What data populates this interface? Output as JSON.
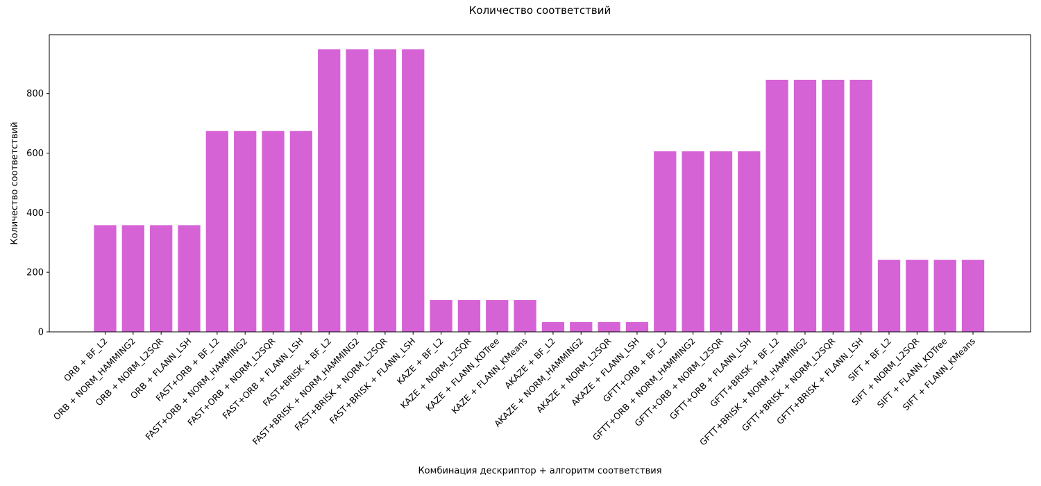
{
  "chart_data": {
    "type": "bar",
    "title": "Количество соответствий",
    "xlabel": "Комбинация дескриптор + алгоритм соответствия",
    "ylabel": "Количество соответствий",
    "ylim": [
      0,
      1000
    ],
    "yticks": [
      0,
      200,
      400,
      600,
      800
    ],
    "grid": false,
    "bar_color": "#d663d6",
    "categories": [
      "ORB + BF_L2",
      "ORB + NORM_HAMMING2",
      "ORB + NORM_L2SQR",
      "ORB + FLANN_LSH",
      "FAST+ORB + BF_L2",
      "FAST+ORB + NORM_HAMMING2",
      "FAST+ORB + NORM_L2SQR",
      "FAST+ORB + FLANN_LSH",
      "FAST+BRISK + BF_L2",
      "FAST+BRISK + NORM_HAMMING2",
      "FAST+BRISK + NORM_L2SQR",
      "FAST+BRISK + FLANN_LSH",
      "KAZE + BF_L2",
      "KAZE + NORM_L2SQR",
      "KAZE + FLANN_KDTree",
      "KAZE + FLANN_KMeans",
      "AKAZE + BF_L2",
      "AKAZE + NORM_HAMMING2",
      "AKAZE + NORM_L2SQR",
      "AKAZE + FLANN_LSH",
      "GFTT+ORB + BF_L2",
      "GFTT+ORB + NORM_HAMMING2",
      "GFTT+ORB + NORM_L2SQR",
      "GFTT+ORB + FLANN_LSH",
      "GFTT+BRISK + BF_L2",
      "GFTT+BRISK + NORM_HAMMING2",
      "GFTT+BRISK + NORM_L2SQR",
      "GFTT+BRISK + FLANN_LSH",
      "SIFT + BF_L2",
      "SIFT + NORM_L2SQR",
      "SIFT + FLANN_KDTree",
      "SIFT + FLANN_KMeans"
    ],
    "values": [
      358,
      358,
      358,
      358,
      674,
      674,
      674,
      674,
      948,
      948,
      948,
      948,
      107,
      107,
      107,
      107,
      33,
      33,
      33,
      33,
      606,
      606,
      606,
      606,
      846,
      846,
      846,
      846,
      242,
      242,
      242,
      242
    ]
  }
}
